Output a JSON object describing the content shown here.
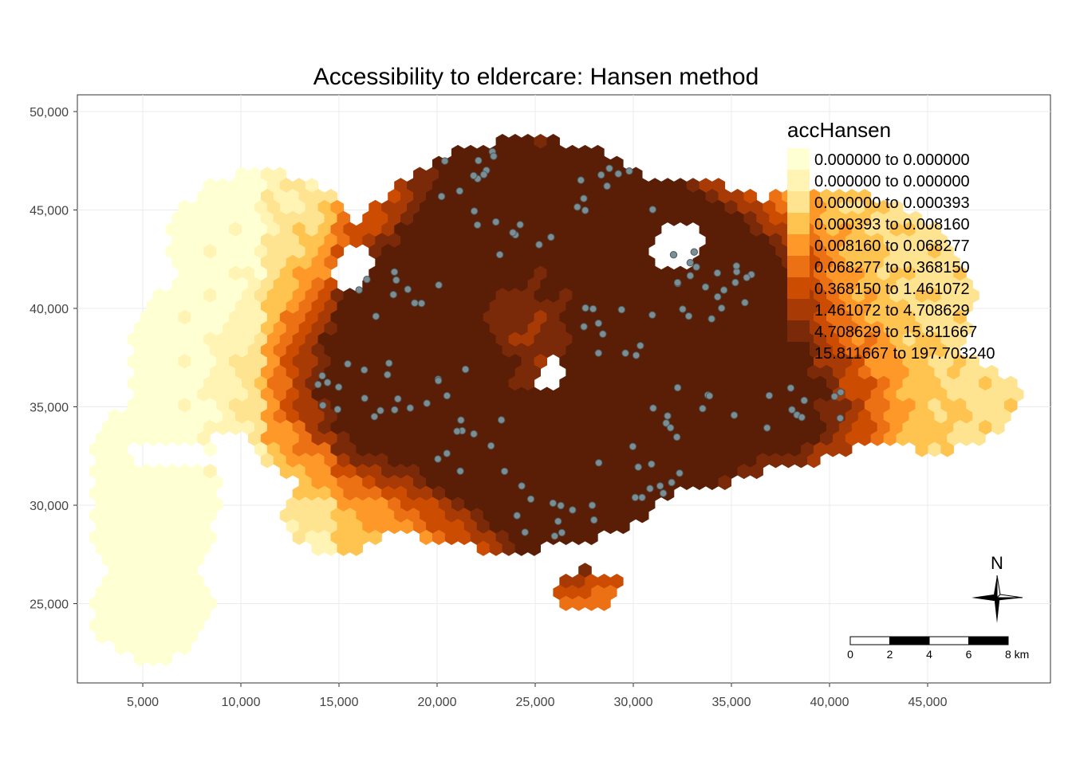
{
  "title": "Accessibility to eldercare: Hansen method",
  "axes": {
    "x_ticks": [
      "5,000",
      "10,000",
      "15,000",
      "20,000",
      "25,000",
      "30,000",
      "35,000",
      "40,000",
      "45,000"
    ],
    "y_ticks": [
      "50,000",
      "45,000",
      "40,000",
      "35,000",
      "30,000",
      "25,000"
    ]
  },
  "legend": {
    "title": "accHansen",
    "classes": [
      {
        "label": "0.000000 to 0.000000",
        "color": "#ffffd4"
      },
      {
        "label": "0.000000 to 0.000000",
        "color": "#fff4b3"
      },
      {
        "label": "0.000000 to 0.000393",
        "color": "#fee391"
      },
      {
        "label": "0.000393 to 0.008160",
        "color": "#fec44f"
      },
      {
        "label": "0.008160 to 0.068277",
        "color": "#fe9929"
      },
      {
        "label": "0.068277 to 0.368150",
        "color": "#ec7014"
      },
      {
        "label": "0.368150 to 1.461072",
        "color": "#cc4c02"
      },
      {
        "label": "1.461072 to 4.708629",
        "color": "#a83a05"
      },
      {
        "label": "4.708629 to 15.811667",
        "color": "#7a2a08"
      },
      {
        "label": "15.811667 to 197.703240",
        "color": "#5a1e06"
      }
    ]
  },
  "scale_bar": {
    "labels": [
      "0",
      "2",
      "4",
      "6",
      "8 km"
    ]
  },
  "north_arrow": {
    "label": "N"
  },
  "colors": {
    "facility_point": "#7a8e94",
    "facility_outline": "#4a5a5e"
  },
  "chart_data": {
    "type": "map",
    "xlim": [
      2000,
      51000
    ],
    "ylim": [
      20000,
      51000
    ],
    "grid": true,
    "legend_position": "top-right",
    "fill_variable": "accHansen",
    "classification": "quantile",
    "facility_count_approx": 120
  }
}
